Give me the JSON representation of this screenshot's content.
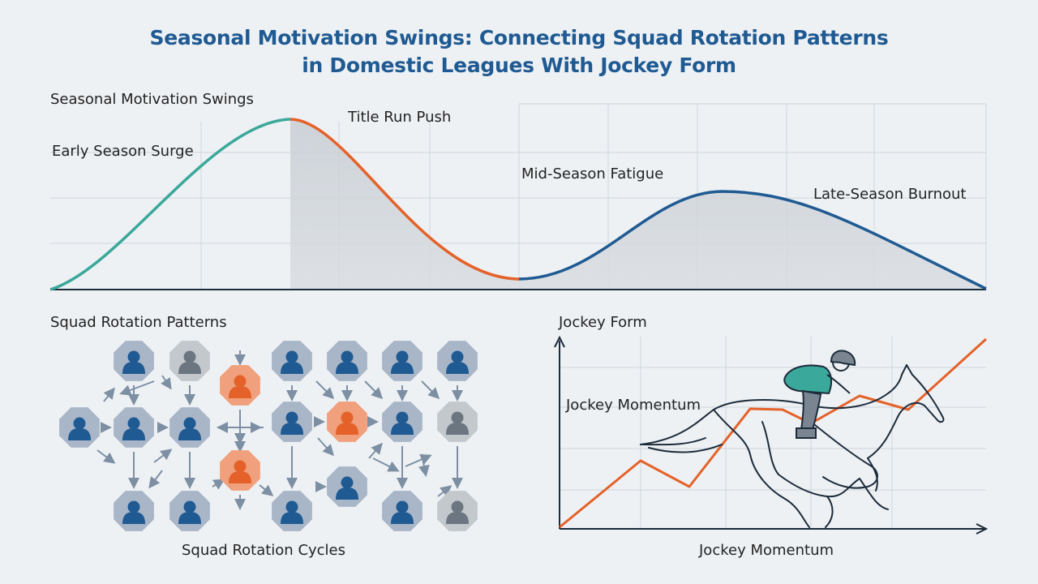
{
  "title": {
    "line1": "Seasonal Motivation Swings: Connecting Squad Rotation Patterns",
    "line2": "in Domestic Leagues With Jockey Form"
  },
  "motivation_panel": {
    "heading": "Seasonal Motivation Swings",
    "labels": {
      "early": "Early Season Surge",
      "title_run": "Title Run Push",
      "mid": "Mid-Season Fatigue",
      "late": "Late-Season Burnout"
    }
  },
  "rotation_panel": {
    "heading": "Squad Rotation Patterns",
    "caption": "Squad Rotation Cycles"
  },
  "jockey_panel": {
    "heading": "Jockey Form",
    "inner_label": "Jockey Momentum",
    "x_label": "Jockey Momentum"
  },
  "colors": {
    "title": "#1f5a92",
    "teal": "#3aa89a",
    "orange": "#e4622a",
    "blue": "#1f5a92",
    "gray_person": "#6b7680",
    "node_blue_bg": "#a9b6c8",
    "node_gray_bg": "#c3c8cd",
    "node_orange_bg": "#f0a07c"
  },
  "icons": [
    "person-icon",
    "arrow-icon",
    "horse-jockey-illustration"
  ]
}
